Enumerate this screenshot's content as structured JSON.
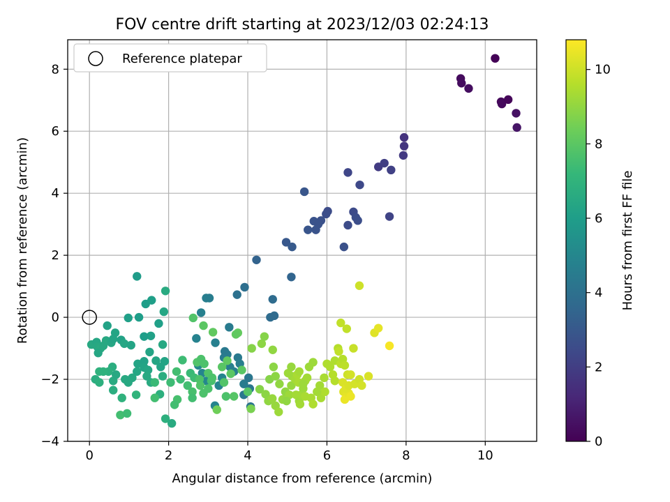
{
  "chart_data": {
    "type": "scatter",
    "title": "FOV centre drift starting at 2023/12/03 02:24:13",
    "xlabel": "Angular distance from reference (arcmin)",
    "ylabel": "Rotation from reference (arcmin)",
    "xlim": [
      -0.55,
      11.3
    ],
    "ylim": [
      -4.0,
      8.95
    ],
    "xticks": [
      0,
      2,
      4,
      6,
      8,
      10
    ],
    "yticks": [
      -4,
      -2,
      0,
      2,
      4,
      6,
      8
    ],
    "grid": true,
    "legend": {
      "placement": "upper-left",
      "entries": [
        "Reference platepar"
      ]
    },
    "reference_point": {
      "x": 0,
      "y": 0,
      "label": "Reference platepar"
    },
    "colorbar": {
      "label": "Hours from first FF file",
      "colormap": "viridis",
      "range": [
        0,
        10.8
      ],
      "ticks": [
        0,
        2,
        4,
        6,
        8,
        10
      ]
    },
    "colormap_stops": [
      "#440154",
      "#482878",
      "#3e4989",
      "#31688e",
      "#26828e",
      "#1f9e89",
      "#35b779",
      "#6ece58",
      "#b5de2b",
      "#fde725"
    ],
    "points": [
      {
        "x": 10.25,
        "y": 8.35,
        "t": 0.05
      },
      {
        "x": 9.38,
        "y": 7.7,
        "t": 0.3
      },
      {
        "x": 9.4,
        "y": 7.55,
        "t": 0.35
      },
      {
        "x": 9.58,
        "y": 7.38,
        "t": 0.4
      },
      {
        "x": 10.4,
        "y": 6.95,
        "t": 0.2
      },
      {
        "x": 10.42,
        "y": 6.88,
        "t": 0.25
      },
      {
        "x": 10.58,
        "y": 7.02,
        "t": 0.15
      },
      {
        "x": 10.78,
        "y": 6.58,
        "t": 0.5
      },
      {
        "x": 10.8,
        "y": 6.12,
        "t": 0.6
      },
      {
        "x": 7.95,
        "y": 5.8,
        "t": 1.6
      },
      {
        "x": 7.95,
        "y": 5.52,
        "t": 1.7
      },
      {
        "x": 7.93,
        "y": 5.22,
        "t": 1.8
      },
      {
        "x": 7.3,
        "y": 4.85,
        "t": 1.9
      },
      {
        "x": 7.45,
        "y": 4.97,
        "t": 2.0
      },
      {
        "x": 7.62,
        "y": 4.75,
        "t": 2.1
      },
      {
        "x": 6.53,
        "y": 4.67,
        "t": 2.3
      },
      {
        "x": 6.83,
        "y": 4.27,
        "t": 2.4
      },
      {
        "x": 5.43,
        "y": 4.05,
        "t": 2.9
      },
      {
        "x": 6.02,
        "y": 3.42,
        "t": 2.5
      },
      {
        "x": 5.98,
        "y": 3.33,
        "t": 2.6
      },
      {
        "x": 6.67,
        "y": 3.4,
        "t": 2.45
      },
      {
        "x": 6.73,
        "y": 3.22,
        "t": 2.55
      },
      {
        "x": 6.78,
        "y": 3.12,
        "t": 2.6
      },
      {
        "x": 7.58,
        "y": 3.25,
        "t": 2.2
      },
      {
        "x": 5.85,
        "y": 3.12,
        "t": 2.7
      },
      {
        "x": 5.67,
        "y": 3.1,
        "t": 2.8
      },
      {
        "x": 5.78,
        "y": 3.0,
        "t": 2.75
      },
      {
        "x": 5.52,
        "y": 2.82,
        "t": 2.85
      },
      {
        "x": 5.72,
        "y": 2.82,
        "t": 2.8
      },
      {
        "x": 6.53,
        "y": 2.97,
        "t": 2.5
      },
      {
        "x": 6.43,
        "y": 2.27,
        "t": 2.7
      },
      {
        "x": 4.97,
        "y": 2.42,
        "t": 3.0
      },
      {
        "x": 5.12,
        "y": 2.27,
        "t": 3.05
      },
      {
        "x": 4.22,
        "y": 1.85,
        "t": 3.4
      },
      {
        "x": 5.1,
        "y": 1.3,
        "t": 3.5
      },
      {
        "x": 3.92,
        "y": 0.97,
        "t": 3.9
      },
      {
        "x": 3.73,
        "y": 0.73,
        "t": 4.0
      },
      {
        "x": 4.63,
        "y": 0.58,
        "t": 3.8
      },
      {
        "x": 4.57,
        "y": 0.0,
        "t": 3.8
      },
      {
        "x": 4.67,
        "y": 0.05,
        "t": 3.75
      },
      {
        "x": 2.95,
        "y": 0.62,
        "t": 4.6
      },
      {
        "x": 3.03,
        "y": 0.62,
        "t": 4.55
      },
      {
        "x": 2.82,
        "y": 0.15,
        "t": 4.7
      },
      {
        "x": 3.53,
        "y": -0.32,
        "t": 4.5
      },
      {
        "x": 2.7,
        "y": -0.68,
        "t": 4.8
      },
      {
        "x": 3.18,
        "y": -0.82,
        "t": 4.7
      },
      {
        "x": 3.42,
        "y": -1.1,
        "t": 4.4
      },
      {
        "x": 3.48,
        "y": -1.2,
        "t": 4.45
      },
      {
        "x": 3.4,
        "y": -1.3,
        "t": 4.5
      },
      {
        "x": 3.75,
        "y": -1.3,
        "t": 4.4
      },
      {
        "x": 4.02,
        "y": -1.95,
        "t": 4.3
      },
      {
        "x": 4.05,
        "y": -2.3,
        "t": 4.25
      },
      {
        "x": 3.9,
        "y": -2.5,
        "t": 4.3
      },
      {
        "x": 4.07,
        "y": -2.88,
        "t": 4.2
      },
      {
        "x": 3.17,
        "y": -2.85,
        "t": 4.9
      },
      {
        "x": 3.55,
        "y": -1.6,
        "t": 4.6
      },
      {
        "x": 3.65,
        "y": -1.75,
        "t": 4.7
      },
      {
        "x": 3.8,
        "y": -1.5,
        "t": 4.6
      },
      {
        "x": 2.85,
        "y": -1.8,
        "t": 4.9
      },
      {
        "x": 3.27,
        "y": -2.2,
        "t": 4.85
      },
      {
        "x": 3.35,
        "y": -1.95,
        "t": 4.9
      },
      {
        "x": 3.9,
        "y": -2.15,
        "t": 4.5
      },
      {
        "x": 2.75,
        "y": -1.55,
        "t": 5.0
      },
      {
        "x": 2.95,
        "y": -2.05,
        "t": 5.0
      },
      {
        "x": 1.2,
        "y": 1.32,
        "t": 5.9
      },
      {
        "x": 1.42,
        "y": 0.43,
        "t": 6.0
      },
      {
        "x": 1.57,
        "y": 0.55,
        "t": 6.05
      },
      {
        "x": 1.92,
        "y": 0.85,
        "t": 6.6
      },
      {
        "x": 1.88,
        "y": 0.18,
        "t": 6.4
      },
      {
        "x": 1.25,
        "y": 0.0,
        "t": 6.0
      },
      {
        "x": 0.98,
        "y": -0.02,
        "t": 6.1
      },
      {
        "x": 1.75,
        "y": -0.2,
        "t": 6.1
      },
      {
        "x": 1.55,
        "y": -0.6,
        "t": 6.15
      },
      {
        "x": 1.38,
        "y": -0.62,
        "t": 6.0
      },
      {
        "x": 0.45,
        "y": -0.27,
        "t": 6.2
      },
      {
        "x": 0.65,
        "y": -0.5,
        "t": 6.3
      },
      {
        "x": 0.8,
        "y": -0.73,
        "t": 6.2
      },
      {
        "x": 1.52,
        "y": -1.12,
        "t": 6.3
      },
      {
        "x": 1.85,
        "y": -0.88,
        "t": 6.5
      },
      {
        "x": 0.05,
        "y": -0.88,
        "t": 6.5
      },
      {
        "x": 0.18,
        "y": -0.8,
        "t": 6.4
      },
      {
        "x": 0.2,
        "y": -0.95,
        "t": 6.5
      },
      {
        "x": 0.28,
        "y": -1.0,
        "t": 6.6
      },
      {
        "x": 0.35,
        "y": -0.92,
        "t": 6.5
      },
      {
        "x": 0.22,
        "y": -1.15,
        "t": 6.4
      },
      {
        "x": 0.42,
        "y": -0.75,
        "t": 6.5
      },
      {
        "x": 0.55,
        "y": -0.82,
        "t": 6.4
      },
      {
        "x": 0.6,
        "y": -0.7,
        "t": 6.3
      },
      {
        "x": 0.88,
        "y": -0.85,
        "t": 6.4
      },
      {
        "x": 1.05,
        "y": -0.9,
        "t": 6.3
      },
      {
        "x": 0.58,
        "y": -1.6,
        "t": 6.7
      },
      {
        "x": 0.48,
        "y": -1.75,
        "t": 6.8
      },
      {
        "x": 0.35,
        "y": -1.75,
        "t": 6.9
      },
      {
        "x": 0.25,
        "y": -1.75,
        "t": 6.9
      },
      {
        "x": 0.15,
        "y": -2.0,
        "t": 6.7
      },
      {
        "x": 0.25,
        "y": -2.1,
        "t": 6.8
      },
      {
        "x": 0.6,
        "y": -2.05,
        "t": 6.6
      },
      {
        "x": 0.67,
        "y": -1.85,
        "t": 6.5
      },
      {
        "x": 0.9,
        "y": -2.0,
        "t": 6.55
      },
      {
        "x": 0.98,
        "y": -2.1,
        "t": 6.5
      },
      {
        "x": 0.6,
        "y": -2.35,
        "t": 6.7
      },
      {
        "x": 0.82,
        "y": -2.6,
        "t": 6.9
      },
      {
        "x": 1.18,
        "y": -2.5,
        "t": 7.0
      },
      {
        "x": 1.22,
        "y": -1.5,
        "t": 6.3
      },
      {
        "x": 1.38,
        "y": -1.42,
        "t": 6.2
      },
      {
        "x": 1.38,
        "y": -1.62,
        "t": 6.3
      },
      {
        "x": 1.48,
        "y": -1.7,
        "t": 6.4
      },
      {
        "x": 1.68,
        "y": -1.4,
        "t": 6.35
      },
      {
        "x": 1.8,
        "y": -1.6,
        "t": 6.3
      },
      {
        "x": 1.9,
        "y": -1.42,
        "t": 6.3
      },
      {
        "x": 1.55,
        "y": -2.1,
        "t": 6.6
      },
      {
        "x": 1.45,
        "y": -1.9,
        "t": 6.5
      },
      {
        "x": 1.78,
        "y": -2.48,
        "t": 6.8
      },
      {
        "x": 1.85,
        "y": -1.9,
        "t": 6.7
      },
      {
        "x": 1.08,
        "y": -1.95,
        "t": 6.5
      },
      {
        "x": 1.2,
        "y": -1.75,
        "t": 6.4
      },
      {
        "x": 0.78,
        "y": -3.15,
        "t": 7.5
      },
      {
        "x": 0.95,
        "y": -3.1,
        "t": 7.4
      },
      {
        "x": 1.65,
        "y": -2.6,
        "t": 7.5
      },
      {
        "x": 1.65,
        "y": -2.1,
        "t": 7.3
      },
      {
        "x": 1.92,
        "y": -3.27,
        "t": 6.8
      },
      {
        "x": 2.08,
        "y": -3.42,
        "t": 6.6
      },
      {
        "x": 2.35,
        "y": -1.38,
        "t": 7.4
      },
      {
        "x": 2.55,
        "y": -1.8,
        "t": 7.3
      },
      {
        "x": 2.65,
        "y": -1.95,
        "t": 7.4
      },
      {
        "x": 2.48,
        "y": -2.2,
        "t": 7.5
      },
      {
        "x": 2.3,
        "y": -2.0,
        "t": 7.4
      },
      {
        "x": 2.2,
        "y": -1.75,
        "t": 7.5
      },
      {
        "x": 2.6,
        "y": -2.4,
        "t": 7.6
      },
      {
        "x": 2.6,
        "y": -2.6,
        "t": 7.5
      },
      {
        "x": 2.78,
        "y": -2.0,
        "t": 7.7
      },
      {
        "x": 2.8,
        "y": -2.2,
        "t": 7.8
      },
      {
        "x": 2.88,
        "y": -2.45,
        "t": 7.7
      },
      {
        "x": 3.0,
        "y": -2.3,
        "t": 7.7
      },
      {
        "x": 3.08,
        "y": -2.05,
        "t": 7.6
      },
      {
        "x": 2.72,
        "y": -1.45,
        "t": 7.8
      },
      {
        "x": 2.82,
        "y": -1.35,
        "t": 7.7
      },
      {
        "x": 2.9,
        "y": -1.5,
        "t": 7.7
      },
      {
        "x": 3.0,
        "y": -1.8,
        "t": 7.8
      },
      {
        "x": 3.1,
        "y": -1.95,
        "t": 7.7
      },
      {
        "x": 2.22,
        "y": -2.65,
        "t": 7.6
      },
      {
        "x": 2.15,
        "y": -2.82,
        "t": 7.5
      },
      {
        "x": 2.05,
        "y": -2.1,
        "t": 7.4
      },
      {
        "x": 2.62,
        "y": -0.02,
        "t": 7.8
      },
      {
        "x": 2.88,
        "y": -0.27,
        "t": 8.0
      },
      {
        "x": 3.12,
        "y": -0.48,
        "t": 8.1
      },
      {
        "x": 3.75,
        "y": -0.5,
        "t": 8.2
      },
      {
        "x": 3.7,
        "y": -0.55,
        "t": 8.1
      },
      {
        "x": 3.22,
        "y": -2.98,
        "t": 8.4
      },
      {
        "x": 3.45,
        "y": -2.55,
        "t": 7.7
      },
      {
        "x": 3.57,
        "y": -1.82,
        "t": 8.0
      },
      {
        "x": 3.65,
        "y": -2.55,
        "t": 7.9
      },
      {
        "x": 3.85,
        "y": -1.7,
        "t": 8.0
      },
      {
        "x": 3.48,
        "y": -1.4,
        "t": 8.1
      },
      {
        "x": 3.35,
        "y": -1.6,
        "t": 7.95
      },
      {
        "x": 3.4,
        "y": -2.1,
        "t": 7.8
      },
      {
        "x": 4.0,
        "y": -2.4,
        "t": 7.9
      },
      {
        "x": 4.08,
        "y": -2.95,
        "t": 8.6
      },
      {
        "x": 4.1,
        "y": -1.0,
        "t": 8.8
      },
      {
        "x": 4.35,
        "y": -0.85,
        "t": 8.9
      },
      {
        "x": 4.42,
        "y": -0.62,
        "t": 8.8
      },
      {
        "x": 4.63,
        "y": -1.05,
        "t": 9.0
      },
      {
        "x": 4.3,
        "y": -2.32,
        "t": 8.8
      },
      {
        "x": 4.45,
        "y": -2.48,
        "t": 8.9
      },
      {
        "x": 4.52,
        "y": -2.7,
        "t": 9.0
      },
      {
        "x": 4.62,
        "y": -2.62,
        "t": 9.1
      },
      {
        "x": 4.7,
        "y": -2.85,
        "t": 9.1
      },
      {
        "x": 4.78,
        "y": -3.05,
        "t": 9.2
      },
      {
        "x": 4.55,
        "y": -2.0,
        "t": 8.8
      },
      {
        "x": 4.7,
        "y": -1.9,
        "t": 8.9
      },
      {
        "x": 4.65,
        "y": -1.6,
        "t": 8.9
      },
      {
        "x": 4.8,
        "y": -2.15,
        "t": 9.0
      },
      {
        "x": 4.95,
        "y": -2.4,
        "t": 9.0
      },
      {
        "x": 4.88,
        "y": -2.65,
        "t": 9.1
      },
      {
        "x": 5.05,
        "y": -2.5,
        "t": 9.2
      },
      {
        "x": 5.1,
        "y": -2.2,
        "t": 9.1
      },
      {
        "x": 5.12,
        "y": -1.9,
        "t": 9.2
      },
      {
        "x": 5.22,
        "y": -2.5,
        "t": 9.3
      },
      {
        "x": 5.3,
        "y": -2.7,
        "t": 9.2
      },
      {
        "x": 5.32,
        "y": -2.8,
        "t": 9.3
      },
      {
        "x": 5.35,
        "y": -2.5,
        "t": 9.3
      },
      {
        "x": 5.4,
        "y": -2.3,
        "t": 9.2
      },
      {
        "x": 5.45,
        "y": -2.05,
        "t": 9.3
      },
      {
        "x": 5.5,
        "y": -1.95,
        "t": 9.3
      },
      {
        "x": 5.55,
        "y": -1.6,
        "t": 9.2
      },
      {
        "x": 5.65,
        "y": -1.45,
        "t": 9.2
      },
      {
        "x": 5.2,
        "y": -2.0,
        "t": 9.3
      },
      {
        "x": 5.25,
        "y": -1.85,
        "t": 9.4
      },
      {
        "x": 5.28,
        "y": -2.1,
        "t": 9.4
      },
      {
        "x": 5.3,
        "y": -1.75,
        "t": 9.3
      },
      {
        "x": 5.02,
        "y": -1.8,
        "t": 9.2
      },
      {
        "x": 5.1,
        "y": -1.6,
        "t": 9.1
      },
      {
        "x": 5.6,
        "y": -2.6,
        "t": 9.4
      },
      {
        "x": 5.65,
        "y": -2.8,
        "t": 9.5
      },
      {
        "x": 5.45,
        "y": -2.55,
        "t": 9.4
      },
      {
        "x": 5.82,
        "y": -2.2,
        "t": 9.3
      },
      {
        "x": 5.85,
        "y": -2.6,
        "t": 9.4
      },
      {
        "x": 5.95,
        "y": -2.4,
        "t": 9.5
      },
      {
        "x": 6.0,
        "y": -1.5,
        "t": 9.5
      },
      {
        "x": 6.08,
        "y": -1.6,
        "t": 9.5
      },
      {
        "x": 6.15,
        "y": -1.85,
        "t": 9.6
      },
      {
        "x": 6.2,
        "y": -2.05,
        "t": 9.6
      },
      {
        "x": 6.2,
        "y": -1.4,
        "t": 9.5
      },
      {
        "x": 6.28,
        "y": -1.0,
        "t": 9.6
      },
      {
        "x": 6.35,
        "y": -1.5,
        "t": 9.7
      },
      {
        "x": 6.4,
        "y": -1.35,
        "t": 9.6
      },
      {
        "x": 6.35,
        "y": -0.18,
        "t": 9.8
      },
      {
        "x": 6.5,
        "y": -0.37,
        "t": 9.8
      },
      {
        "x": 6.45,
        "y": -1.55,
        "t": 9.7
      },
      {
        "x": 6.3,
        "y": -1.1,
        "t": 9.8
      },
      {
        "x": 6.52,
        "y": -1.85,
        "t": 10.0
      },
      {
        "x": 6.6,
        "y": -1.85,
        "t": 10.1
      },
      {
        "x": 6.4,
        "y": -2.1,
        "t": 10.2
      },
      {
        "x": 6.42,
        "y": -2.4,
        "t": 10.3
      },
      {
        "x": 6.5,
        "y": -2.5,
        "t": 10.4
      },
      {
        "x": 6.45,
        "y": -2.65,
        "t": 10.5
      },
      {
        "x": 6.55,
        "y": -2.45,
        "t": 10.4
      },
      {
        "x": 6.6,
        "y": -2.55,
        "t": 10.5
      },
      {
        "x": 6.48,
        "y": -2.3,
        "t": 10.3
      },
      {
        "x": 6.55,
        "y": -2.2,
        "t": 10.2
      },
      {
        "x": 6.7,
        "y": -2.15,
        "t": 10.1
      },
      {
        "x": 6.67,
        "y": -1.0,
        "t": 9.9
      },
      {
        "x": 6.82,
        "y": 1.02,
        "t": 10.0
      },
      {
        "x": 6.82,
        "y": -2.0,
        "t": 10.0
      },
      {
        "x": 6.88,
        "y": -2.2,
        "t": 10.1
      },
      {
        "x": 7.05,
        "y": -1.9,
        "t": 10.2
      },
      {
        "x": 7.2,
        "y": -0.5,
        "t": 10.3
      },
      {
        "x": 7.3,
        "y": -0.35,
        "t": 10.4
      },
      {
        "x": 7.58,
        "y": -0.92,
        "t": 10.7
      },
      {
        "x": 5.93,
        "y": -1.95,
        "t": 9.4
      },
      {
        "x": 5.75,
        "y": -2.4,
        "t": 9.3
      },
      {
        "x": 4.98,
        "y": -2.7,
        "t": 9.0
      },
      {
        "x": 5.4,
        "y": -2.15,
        "t": 9.2
      }
    ]
  }
}
